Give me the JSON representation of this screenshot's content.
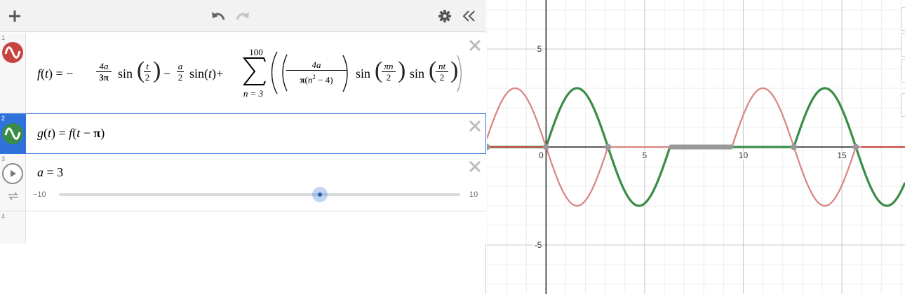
{
  "toolbar": {
    "add_icon": "plus-icon",
    "undo_icon": "undo-icon",
    "redo_icon": "redo-icon",
    "settings_icon": "gear-icon",
    "collapse_icon": "double-chevron-left-icon"
  },
  "expressions": [
    {
      "index": "1",
      "color": "#c74440",
      "icon": "wave-icon",
      "latex": "f(t) = -\\frac{4a}{3\\pi} \\sin(\\frac{t}{2}) - \\frac{a}{2} \\sin(t) + \\sum_{n=3}^{100} ((\\frac{4a}{\\pi(n^2-4)}) \\sin(\\frac{\\pi n}{2}) \\sin(\\frac{nt}{2}))",
      "parts": {
        "f": "f",
        "t": "t",
        "eq": "=",
        "minus": "−",
        "c1_num": "4a",
        "c1_den": "3π",
        "sin": "sin",
        "arg1_num": "t",
        "arg1_den": "2",
        "c2_num": "a",
        "c2_den": "2",
        "plus": "+",
        "sum_top": "100",
        "sum_bottom": "n = 3",
        "c3_num": "4a",
        "c3_den_pi": "π",
        "c3_den_n": "n",
        "c3_den_exp": "2",
        "c3_den_rest": "− 4",
        "arg3_num": "πn",
        "arg3_den": "2",
        "arg4_num": "nt",
        "arg4_den": "2"
      }
    },
    {
      "index": "2",
      "color": "#388c46",
      "icon": "wave-icon",
      "latex": "g(t) = f(t - \\pi)",
      "parts": {
        "g": "g",
        "t": "t",
        "eq": "=",
        "f": "f",
        "minus": "−",
        "pi": "π"
      }
    },
    {
      "index": "3",
      "icon": "play-icon",
      "loop_icon": "loop-icon",
      "latex": "a = 3",
      "parts": {
        "a": "a",
        "eq": "=",
        "val": "3"
      },
      "slider": {
        "min": "−10",
        "max": "10",
        "value": 3,
        "min_value": -10,
        "max_value": 10
      }
    },
    {
      "index": "4",
      "latex": ""
    }
  ],
  "graph": {
    "x_ticks": [
      "0",
      "5",
      "10",
      "15"
    ],
    "y_ticks": [
      "5",
      "-5"
    ],
    "xlim": [
      -3,
      18.2
    ],
    "ylim": [
      -7.5,
      7.5
    ],
    "grid": true,
    "colors": {
      "f": "#d98282",
      "g": "#388c46",
      "f_flat": "#c74440",
      "points": "#999999"
    }
  },
  "chart_data": {
    "type": "line",
    "series": [
      {
        "name": "f(t)",
        "color": "#c74440",
        "expression": "f(t)"
      },
      {
        "name": "g(t)",
        "color": "#388c46",
        "expression": "g(t) = f(t − π)"
      }
    ],
    "parameter_a": 3,
    "xlim": [
      -3,
      18.2
    ],
    "ylim": [
      -7.5,
      7.5
    ],
    "x_ticks": [
      0,
      5,
      10,
      15
    ],
    "y_ticks": [
      5,
      -5
    ],
    "grid": true
  }
}
